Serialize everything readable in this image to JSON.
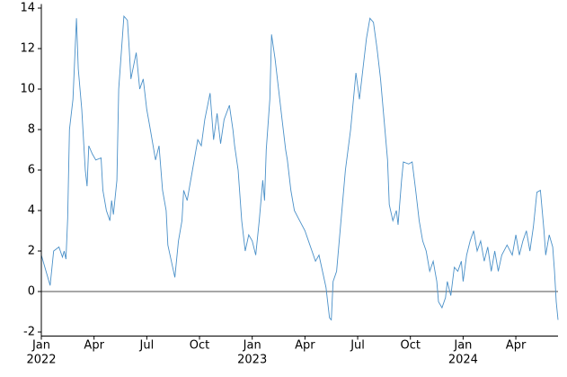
{
  "chart_data": {
    "type": "line",
    "x": [
      0,
      0.5,
      0.7,
      1,
      1.2,
      1.3,
      1.4,
      1.5,
      1.6,
      1.8,
      2.0,
      2.1,
      2.3,
      2.5,
      2.6,
      2.7,
      2.9,
      3.1,
      3.4,
      3.5,
      3.7,
      3.9,
      4.0,
      4.1,
      4.3,
      4.4,
      4.7,
      4.9,
      5.0,
      5.1,
      5.4,
      5.6,
      5.8,
      6.0,
      6.2,
      6.5,
      6.7,
      6.9,
      7.1,
      7.2,
      7.4,
      7.6,
      7.8,
      8.0,
      8.1,
      8.3,
      8.6,
      8.9,
      9.1,
      9.3,
      9.6,
      9.8,
      10.0,
      10.2,
      10.4,
      10.7,
      10.9,
      11.0,
      11.2,
      11.4,
      11.6,
      11.8,
      12.0,
      12.2,
      12.4,
      12.6,
      12.7,
      12.8,
      13.0,
      13.1,
      13.3,
      13.5,
      13.7,
      13.9,
      14.0,
      14.2,
      14.4,
      14.7,
      15.0,
      15.2,
      15.4,
      15.6,
      15.8,
      16.0,
      16.2,
      16.4,
      16.5,
      16.6,
      16.8,
      17.0,
      17.3,
      17.6,
      17.9,
      18.1,
      18.3,
      18.5,
      18.7,
      18.9,
      19.1,
      19.3,
      19.5,
      19.7,
      19.8,
      20.0,
      20.2,
      20.3,
      20.5,
      20.6,
      20.9,
      21.1,
      21.3,
      21.5,
      21.7,
      21.9,
      22.1,
      22.3,
      22.5,
      22.6,
      22.8,
      23.0,
      23.1,
      23.3,
      23.5,
      23.7,
      23.9,
      24.0,
      24.2,
      24.4,
      24.6,
      24.8,
      25.0,
      25.2,
      25.4,
      25.6,
      25.8,
      26.0,
      26.2,
      26.5,
      26.8,
      27.0,
      27.2,
      27.4,
      27.6,
      27.8,
      28.0,
      28.2,
      28.4,
      28.6,
      28.7,
      28.9,
      29.1,
      29.2,
      29.3,
      29.4
    ],
    "values": [
      1.8,
      0.3,
      2.0,
      2.2,
      1.7,
      2.0,
      1.6,
      3.6,
      8.0,
      9.5,
      13.5,
      11.0,
      9.0,
      6.0,
      5.2,
      7.2,
      6.8,
      6.5,
      6.6,
      5.0,
      4.0,
      3.5,
      4.5,
      3.8,
      5.5,
      10.0,
      13.6,
      13.4,
      12.0,
      10.5,
      11.8,
      10.0,
      10.5,
      9.0,
      8.0,
      6.5,
      7.2,
      5.0,
      4.0,
      2.3,
      1.5,
      0.7,
      2.5,
      3.5,
      5.0,
      4.5,
      6.0,
      7.5,
      7.2,
      8.5,
      9.8,
      7.5,
      8.8,
      7.3,
      8.5,
      9.2,
      8.0,
      7.2,
      6.0,
      3.5,
      2.0,
      2.8,
      2.5,
      1.8,
      3.5,
      5.5,
      4.5,
      7.0,
      9.5,
      12.7,
      11.5,
      10.0,
      8.5,
      7.0,
      6.5,
      5.0,
      4.0,
      3.5,
      3.0,
      2.5,
      2.0,
      1.5,
      1.8,
      1.0,
      0.2,
      -1.3,
      -1.4,
      0.5,
      1.0,
      3.0,
      6.0,
      8.0,
      10.8,
      9.5,
      11.0,
      12.5,
      13.5,
      13.3,
      12.0,
      10.5,
      8.5,
      6.5,
      4.3,
      3.5,
      4.0,
      3.3,
      5.5,
      6.4,
      6.3,
      6.4,
      5.0,
      3.5,
      2.5,
      2.0,
      1.0,
      1.5,
      0.5,
      -0.5,
      -0.8,
      -0.3,
      0.5,
      -0.2,
      1.2,
      1.0,
      1.5,
      0.5,
      1.8,
      2.5,
      3.0,
      2.0,
      2.5,
      1.5,
      2.2,
      1.0,
      2.0,
      1.0,
      1.8,
      2.3,
      1.8,
      2.8,
      1.8,
      2.5,
      3.0,
      2.0,
      3.2,
      4.9,
      5.0,
      3.0,
      1.8,
      2.8,
      2.2,
      1.0,
      -0.5,
      -1.4
    ],
    "color": "#4a90c8",
    "hline": 0,
    "hline_color": "#8c8c8c",
    "xlim": [
      0,
      29.4
    ],
    "xticks": [
      {
        "value": 0,
        "label": "Jan 2022"
      },
      {
        "value": 3,
        "label": "Apr"
      },
      {
        "value": 6,
        "label": "Jul"
      },
      {
        "value": 9,
        "label": "Oct"
      },
      {
        "value": 12,
        "label": "Jan 2023"
      },
      {
        "value": 15,
        "label": "Apr"
      },
      {
        "value": 18,
        "label": "Jul"
      },
      {
        "value": 21,
        "label": "Oct"
      },
      {
        "value": 24,
        "label": "Jan 2024"
      },
      {
        "value": 27,
        "label": "Apr"
      }
    ],
    "ylim": [
      -2.2,
      14.2
    ],
    "yticks": [
      -2,
      0,
      2,
      4,
      6,
      8,
      10,
      12,
      14
    ]
  }
}
